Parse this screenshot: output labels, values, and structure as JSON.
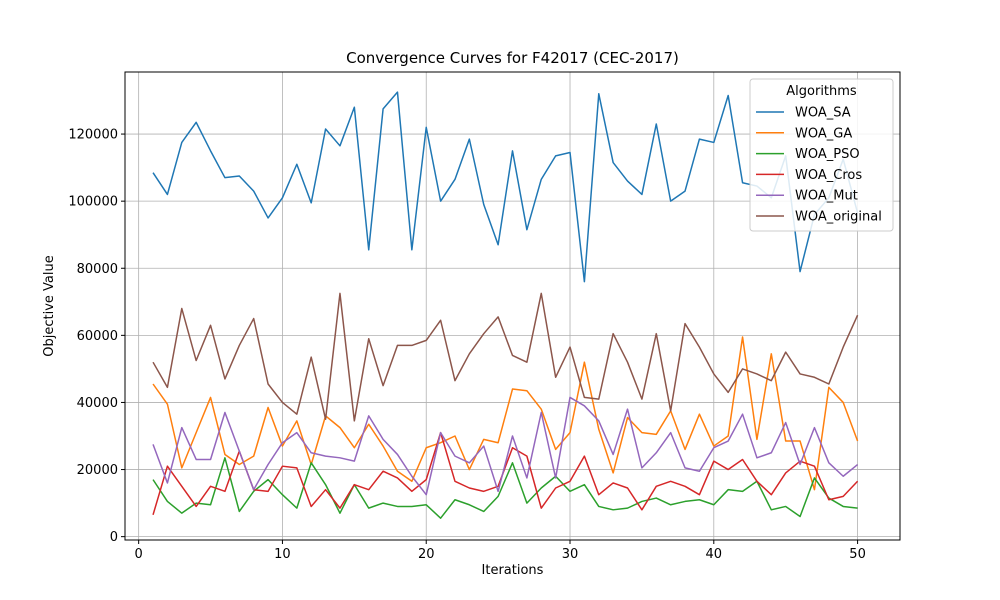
{
  "chart_data": {
    "type": "line",
    "title": "Convergence Curves for F42017 (CEC-2017)",
    "xlabel": "Iterations",
    "ylabel": "Objective Value",
    "xlim": [
      -0.95,
      52.95
    ],
    "ylim": [
      -1000,
      138500
    ],
    "xticks": [
      0,
      10,
      20,
      30,
      40,
      50
    ],
    "yticks": [
      0,
      20000,
      40000,
      60000,
      80000,
      100000,
      120000
    ],
    "grid": true,
    "legend_title": "Algorithms",
    "legend_position": "top-right",
    "x": [
      1,
      2,
      3,
      4,
      5,
      6,
      7,
      8,
      9,
      10,
      11,
      12,
      13,
      14,
      15,
      16,
      17,
      18,
      19,
      20,
      21,
      22,
      23,
      24,
      25,
      26,
      27,
      28,
      29,
      30,
      31,
      32,
      33,
      34,
      35,
      36,
      37,
      38,
      39,
      40,
      41,
      42,
      43,
      44,
      45,
      46,
      47,
      48,
      49,
      50
    ],
    "series": [
      {
        "name": "WOA_SA",
        "color": "#1f77b4",
        "values": [
          108500,
          102000,
          117500,
          123500,
          115000,
          107000,
          107500,
          103000,
          95000,
          101000,
          111000,
          99500,
          121500,
          116500,
          128000,
          85500,
          127500,
          132500,
          85500,
          122000,
          100000,
          106500,
          118500,
          99000,
          87000,
          115000,
          91500,
          106500,
          113500,
          114500,
          76000,
          132000,
          111500,
          106000,
          102000,
          123000,
          100000,
          103000,
          118500,
          117500,
          131500,
          105500,
          104500,
          101000,
          113500,
          79000,
          96000,
          101000,
          112500,
          96500
        ]
      },
      {
        "name": "WOA_GA",
        "color": "#ff7f0e",
        "values": [
          45500,
          39500,
          20500,
          31000,
          41500,
          24500,
          21500,
          24000,
          38500,
          27000,
          34500,
          21500,
          36000,
          32500,
          26500,
          33500,
          27000,
          19500,
          16500,
          26500,
          28000,
          30000,
          20000,
          29000,
          28000,
          44000,
          43500,
          38000,
          26000,
          31000,
          52000,
          32000,
          19000,
          35500,
          31000,
          30500,
          37500,
          26000,
          36500,
          27000,
          30000,
          59500,
          29000,
          54500,
          28500,
          28500,
          14000,
          44500,
          40000,
          28500
        ]
      },
      {
        "name": "WOA_PSO",
        "color": "#2ca02c",
        "values": [
          17000,
          10500,
          7000,
          10000,
          9500,
          23500,
          7500,
          13500,
          17000,
          12500,
          8500,
          22000,
          15500,
          7000,
          15500,
          8500,
          10000,
          9000,
          9000,
          9500,
          5500,
          11000,
          9500,
          7500,
          12000,
          22000,
          10000,
          14500,
          18000,
          13500,
          15500,
          9000,
          8000,
          8500,
          10500,
          11500,
          9500,
          10500,
          11000,
          9500,
          14000,
          13500,
          16500,
          8000,
          9000,
          6000,
          17500,
          11500,
          9000,
          8500
        ]
      },
      {
        "name": "WOA_Cros",
        "color": "#d62728",
        "values": [
          6500,
          21000,
          15000,
          9000,
          15000,
          13500,
          25500,
          14000,
          13500,
          21000,
          20500,
          9000,
          14000,
          8500,
          15500,
          14000,
          19500,
          17500,
          13500,
          17000,
          31000,
          16500,
          14500,
          13500,
          15000,
          26500,
          24000,
          8500,
          14500,
          16500,
          24000,
          12500,
          16000,
          14500,
          8000,
          15000,
          16500,
          15000,
          12500,
          22500,
          20000,
          23000,
          16500,
          12500,
          19000,
          22500,
          21000,
          11000,
          12000,
          16500
        ]
      },
      {
        "name": "WOA_Mut",
        "color": "#9467bd",
        "values": [
          27500,
          16000,
          32500,
          23000,
          23000,
          37000,
          25500,
          14000,
          21500,
          28000,
          31000,
          25000,
          24000,
          23500,
          22500,
          36000,
          29000,
          24500,
          18000,
          12500,
          31000,
          24000,
          22000,
          27000,
          13500,
          30000,
          17500,
          37000,
          17500,
          41500,
          39000,
          34500,
          24500,
          38000,
          20500,
          25000,
          31000,
          20500,
          19500,
          26500,
          28500,
          36500,
          23500,
          25000,
          34000,
          21500,
          32500,
          22000,
          18000,
          21500
        ]
      },
      {
        "name": "WOA_original",
        "color": "#8c564b",
        "values": [
          52000,
          44500,
          68000,
          52500,
          63000,
          47000,
          57000,
          65000,
          45500,
          40000,
          36500,
          53500,
          35000,
          72500,
          34500,
          59000,
          45000,
          57000,
          57000,
          58500,
          64500,
          46500,
          54500,
          60500,
          65500,
          54000,
          52000,
          72500,
          47500,
          56500,
          41500,
          41000,
          60500,
          52000,
          41000,
          60500,
          37500,
          63500,
          56500,
          48500,
          43000,
          50000,
          48500,
          46500,
          55000,
          48500,
          47500,
          45500,
          56500,
          66000
        ]
      }
    ]
  }
}
